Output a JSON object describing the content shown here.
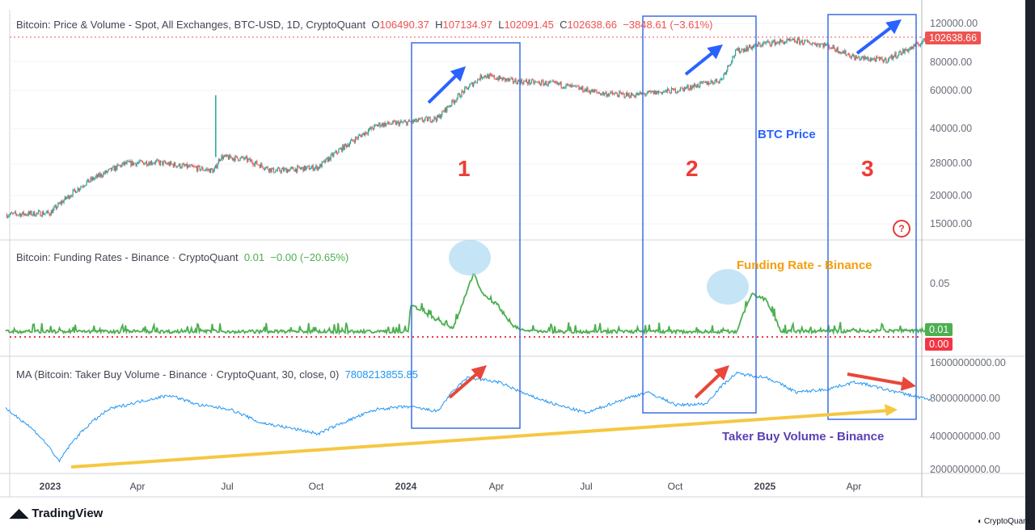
{
  "price_legend": {
    "title": "Bitcoin: Price & Volume - Spot, All Exchanges, BTC-USD, 1D, CryptoQuant",
    "o_label": "O",
    "o": "106490.37",
    "h_label": "H",
    "h": "107134.97",
    "l_label": "L",
    "l": "102091.45",
    "c_label": "C",
    "c": "102638.66",
    "change": "−3848.61 (−3.61%)"
  },
  "funding_legend": {
    "title": "Bitcoin: Funding Rates - Binance · CryptoQuant",
    "value": "0.01",
    "change": "−0.00 (−20.65%)"
  },
  "volume_legend": {
    "title": "MA (Bitcoin: Taker Buy Volume - Binance · CryptoQuant, 30, close, 0)",
    "value": "7808213855.85"
  },
  "price_axis": [
    "120000.00",
    "80000.00",
    "60000.00",
    "40000.00",
    "28000.00",
    "20000.00",
    "15000.00"
  ],
  "price_tag": "102638.66",
  "funding_axis": [
    "0.05"
  ],
  "funding_tags": [
    "0.01",
    "0.00"
  ],
  "volume_axis": [
    "16000000000.00",
    "8000000000.00",
    "4000000000.00",
    "2000000000.00"
  ],
  "time_axis": [
    "2023",
    "Apr",
    "Jul",
    "Oct",
    "2024",
    "Apr",
    "Jul",
    "Oct",
    "2025",
    "Apr"
  ],
  "annotations": {
    "box1": "1",
    "box2": "2",
    "box3": "3",
    "btc_price": "BTC Price",
    "funding": "Funding Rate - Binance",
    "taker": "Taker Buy Volume - Binance",
    "help": "?"
  },
  "footer": {
    "brand": "TradingView",
    "source": "CryptoQuant"
  },
  "colors": {
    "up": "#26a69a",
    "down": "#ef5350",
    "funding": "#4caf50",
    "volume": "#2196f3",
    "box": "#3b6fe0",
    "arrow_blue": "#2962ff",
    "arrow_red": "#e8473a",
    "trend": "#f5c842",
    "label_purple": "#5b3fb5",
    "label_orange": "#f59e0b"
  },
  "chart_data": {
    "type": "line",
    "x_unit": "months since Jan 2023",
    "price": {
      "x": [
        -1.5,
        0,
        1.2,
        2.5,
        3.5,
        5.5,
        5.7,
        6.5,
        7.5,
        9,
        10,
        11,
        12,
        13,
        14.5,
        15.5,
        17,
        18.5,
        19.5,
        21,
        22.5,
        23,
        24,
        25,
        26,
        27,
        28,
        29,
        29.5
      ],
      "y": [
        16500,
        16800,
        23000,
        28000,
        28500,
        26000,
        30000,
        29500,
        26000,
        27000,
        34500,
        42000,
        43000,
        45000,
        70000,
        66000,
        64000,
        58000,
        57000,
        60000,
        67000,
        90000,
        98000,
        100000,
        96000,
        84000,
        82000,
        95000,
        104000
      ]
    },
    "funding": {
      "x": [
        -1.5,
        12,
        12.1,
        13.5,
        14.2,
        14.5,
        15,
        15.5,
        16,
        23,
        23.5,
        24,
        24.5,
        29.5
      ],
      "y": [
        0.005,
        0.005,
        0.03,
        0.007,
        0.06,
        0.04,
        0.03,
        0.01,
        0.005,
        0.005,
        0.04,
        0.035,
        0.005,
        0.006
      ]
    },
    "volume": {
      "x": [
        -1.5,
        0.3,
        2,
        4,
        5,
        6,
        7,
        8,
        9,
        10,
        11,
        12,
        13,
        14,
        15,
        16,
        17,
        18,
        19,
        20,
        21,
        22,
        23,
        24,
        25,
        26,
        27,
        28,
        29,
        29.5
      ],
      "y": [
        6500000000.0,
        2300000000.0,
        6500000000.0,
        8500000000.0,
        7000000000.0,
        6500000000.0,
        5000000000.0,
        4500000000.0,
        4000000000.0,
        5200000000.0,
        6500000000.0,
        6800000000.0,
        6200000000.0,
        12000000000.0,
        11000000000.0,
        8500000000.0,
        7000000000.0,
        6000000000.0,
        7500000000.0,
        9000000000.0,
        7000000000.0,
        7200000000.0,
        13000000000.0,
        12000000000.0,
        9000000000.0,
        9500000000.0,
        11000000000.0,
        9500000000.0,
        8300000000.0,
        7800000000.0
      ]
    }
  }
}
